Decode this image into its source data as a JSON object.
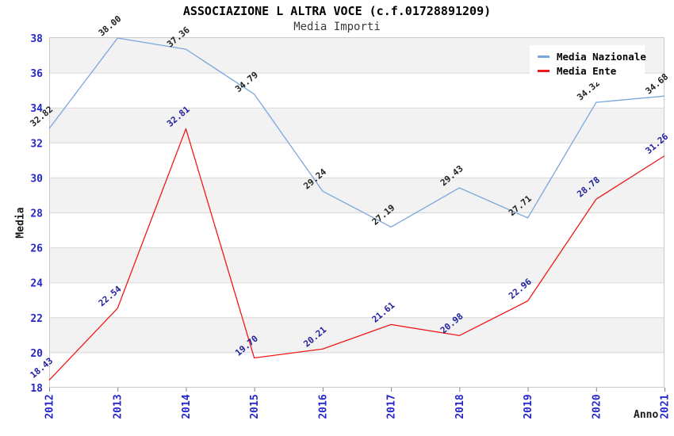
{
  "page": {
    "title": "ASSOCIAZIONE L ALTRA VOCE (c.f.01728891209)",
    "subtitle": "Media Importi"
  },
  "chart_data": {
    "type": "line",
    "title": "ASSOCIAZIONE L ALTRA VOCE (c.f.01728891209)",
    "subtitle": "Media Importi",
    "xlabel": "Anno",
    "ylabel": "Media",
    "x": [
      "2012",
      "2013",
      "2014",
      "2015",
      "2016",
      "2017",
      "2018",
      "2019",
      "2020",
      "2021"
    ],
    "series": [
      {
        "name": "Media Nazionale",
        "color": "#7aa7da",
        "label_color": "#222222",
        "values": [
          32.82,
          38.0,
          37.36,
          34.79,
          29.24,
          27.19,
          29.43,
          27.71,
          34.32,
          34.68
        ]
      },
      {
        "name": "Media Ente",
        "color": "#f01818",
        "label_color": "#1f1f9e",
        "values": [
          18.43,
          22.54,
          32.81,
          19.7,
          20.21,
          21.61,
          20.98,
          22.96,
          28.78,
          31.26
        ]
      }
    ],
    "ylim": [
      18,
      38
    ],
    "ytick_step": 2,
    "grid": "horizontal alternating bands every 2 units",
    "legend_position": "top-right",
    "colors": {
      "tick_label": "#2626cc",
      "band_fill": "#f2f2f2",
      "grid_line": "#d9d9d9",
      "plot_border": "#c9c9c9",
      "tick_mark": "#808080"
    }
  }
}
